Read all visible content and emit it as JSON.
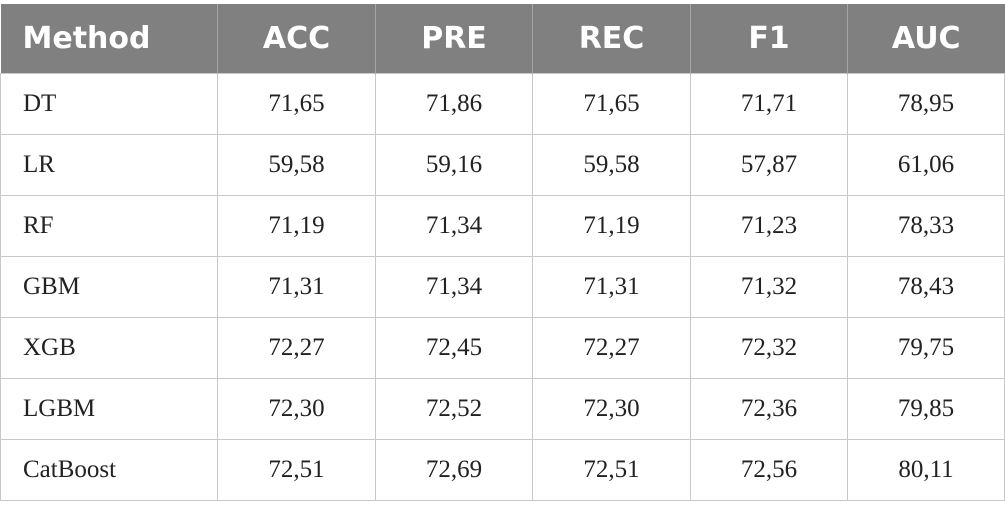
{
  "table": {
    "header": [
      "Method",
      "ACC",
      "PRE",
      "REC",
      "F1",
      "AUC"
    ],
    "rows": [
      [
        "DT",
        "71,65",
        "71,86",
        "71,65",
        "71,71",
        "78,95"
      ],
      [
        "LR",
        "59,58",
        "59,16",
        "59,58",
        "57,87",
        "61,06"
      ],
      [
        "RF",
        "71,19",
        "71,34",
        "71,19",
        "71,23",
        "78,33"
      ],
      [
        "GBM",
        "71,31",
        "71,34",
        "71,31",
        "71,32",
        "78,43"
      ],
      [
        "XGB",
        "72,27",
        "72,45",
        "72,27",
        "72,32",
        "79,75"
      ],
      [
        "LGBM",
        "72,30",
        "72,52",
        "72,30",
        "72,36",
        "79,85"
      ],
      [
        "CatBoost",
        "72,51",
        "72,69",
        "72,51",
        "72,56",
        "80,11"
      ]
    ]
  }
}
